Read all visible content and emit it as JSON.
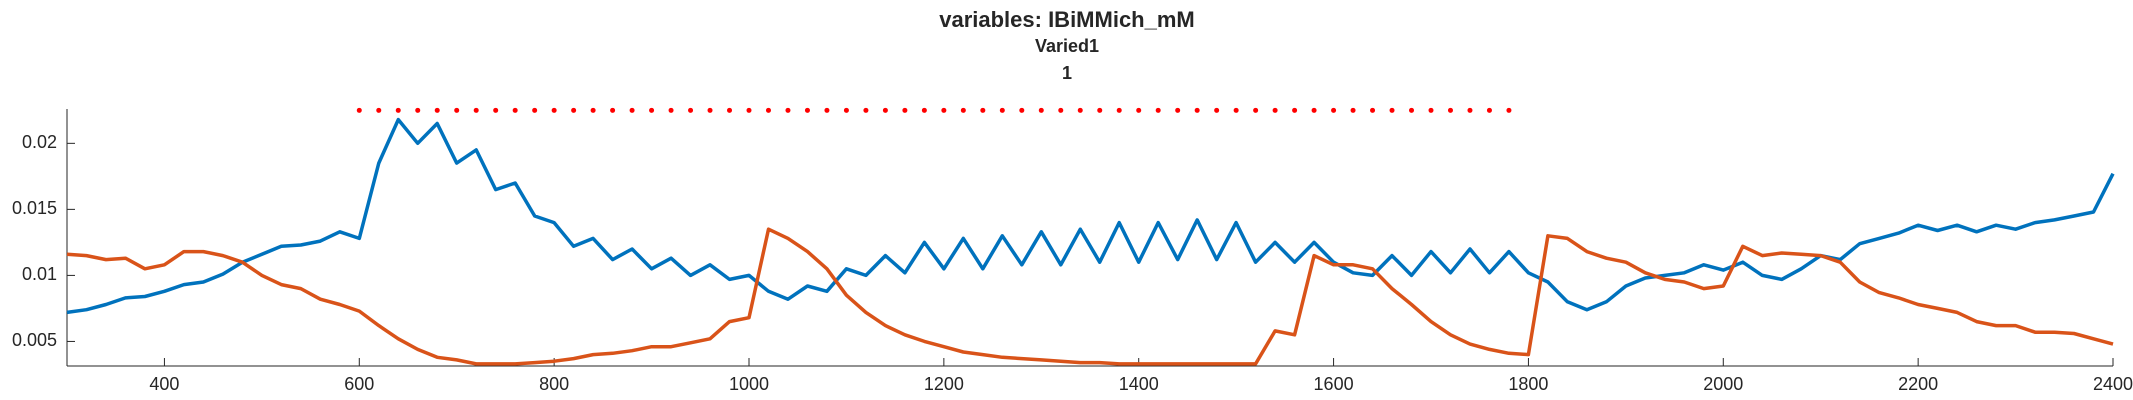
{
  "chart_data": {
    "type": "line",
    "title": "variables: IBiMMich_mM",
    "subtitle": "Varied1",
    "subtitle2": "1",
    "x": [
      300,
      320,
      340,
      360,
      380,
      400,
      420,
      440,
      460,
      480,
      500,
      520,
      540,
      560,
      580,
      600,
      620,
      640,
      660,
      680,
      700,
      720,
      740,
      760,
      780,
      800,
      820,
      840,
      860,
      880,
      900,
      920,
      940,
      960,
      980,
      1000,
      1020,
      1040,
      1060,
      1080,
      1100,
      1120,
      1140,
      1160,
      1180,
      1200,
      1220,
      1240,
      1260,
      1280,
      1300,
      1320,
      1340,
      1360,
      1380,
      1400,
      1420,
      1440,
      1460,
      1480,
      1500,
      1520,
      1540,
      1560,
      1580,
      1600,
      1620,
      1640,
      1660,
      1680,
      1700,
      1720,
      1740,
      1760,
      1780,
      1800,
      1820,
      1840,
      1860,
      1880,
      1900,
      1920,
      1940,
      1960,
      1980,
      2000,
      2020,
      2040,
      2060,
      2080,
      2100,
      2120,
      2140,
      2160,
      2180,
      2200,
      2220,
      2240,
      2260,
      2280,
      2300,
      2320,
      2340,
      2360,
      2380,
      2400
    ],
    "series": [
      {
        "color": "#0072bd",
        "style": "solid",
        "values": [
          0.0072,
          0.0074,
          0.0078,
          0.0083,
          0.0084,
          0.0088,
          0.0093,
          0.0095,
          0.0101,
          0.011,
          0.0116,
          0.0122,
          0.0123,
          0.0126,
          0.0133,
          0.0128,
          0.0185,
          0.0218,
          0.02,
          0.0215,
          0.0185,
          0.0195,
          0.0165,
          0.017,
          0.0145,
          0.014,
          0.0122,
          0.0128,
          0.0112,
          0.012,
          0.0105,
          0.0113,
          0.01,
          0.0108,
          0.0097,
          0.01,
          0.0088,
          0.0082,
          0.0092,
          0.0088,
          0.0105,
          0.01,
          0.0115,
          0.0102,
          0.0125,
          0.0105,
          0.0128,
          0.0105,
          0.013,
          0.0108,
          0.0133,
          0.0108,
          0.0135,
          0.011,
          0.014,
          0.011,
          0.014,
          0.0112,
          0.0142,
          0.0112,
          0.014,
          0.011,
          0.0125,
          0.011,
          0.0125,
          0.011,
          0.0102,
          0.01,
          0.0115,
          0.01,
          0.0118,
          0.0102,
          0.012,
          0.0102,
          0.0118,
          0.0102,
          0.0095,
          0.008,
          0.0074,
          0.008,
          0.0092,
          0.0098,
          0.01,
          0.0102,
          0.0108,
          0.0104,
          0.011,
          0.01,
          0.0097,
          0.0105,
          0.0115,
          0.0112,
          0.0124,
          0.0128,
          0.0132,
          0.0138,
          0.0134,
          0.0138,
          0.0133,
          0.0138,
          0.0135,
          0.014,
          0.0142,
          0.0145,
          0.0148,
          0.0177
        ]
      },
      {
        "color": "#d95319",
        "style": "solid",
        "values": [
          0.0116,
          0.0115,
          0.0112,
          0.0113,
          0.0105,
          0.0108,
          0.0118,
          0.0118,
          0.0115,
          0.011,
          0.01,
          0.0093,
          0.009,
          0.0082,
          0.0078,
          0.0073,
          0.0062,
          0.0052,
          0.0044,
          0.0038,
          0.0036,
          0.0033,
          0.0033,
          0.0033,
          0.0034,
          0.0035,
          0.0037,
          0.004,
          0.0041,
          0.0043,
          0.0046,
          0.0046,
          0.0049,
          0.0052,
          0.0065,
          0.0068,
          0.0135,
          0.0128,
          0.0118,
          0.0105,
          0.0085,
          0.0072,
          0.0062,
          0.0055,
          0.005,
          0.0046,
          0.0042,
          0.004,
          0.0038,
          0.0037,
          0.0036,
          0.0035,
          0.0034,
          0.0034,
          0.0033,
          0.0033,
          0.0033,
          0.0033,
          0.0033,
          0.0033,
          0.0033,
          0.0033,
          0.0058,
          0.0055,
          0.0115,
          0.0108,
          0.0108,
          0.0105,
          0.009,
          0.0078,
          0.0065,
          0.0055,
          0.0048,
          0.0044,
          0.0041,
          0.004,
          0.013,
          0.0128,
          0.0118,
          0.0113,
          0.011,
          0.0102,
          0.0097,
          0.0095,
          0.009,
          0.0092,
          0.0122,
          0.0115,
          0.0117,
          0.0116,
          0.0115,
          0.011,
          0.0095,
          0.0087,
          0.0083,
          0.0078,
          0.0075,
          0.0072,
          0.0065,
          0.0062,
          0.0062,
          0.0057,
          0.0057,
          0.0056,
          0.0052,
          0.0048
        ]
      },
      {
        "color": "#ff0000",
        "style": "dotted",
        "values": [
          null,
          null,
          null,
          null,
          null,
          null,
          null,
          null,
          null,
          null,
          null,
          null,
          null,
          null,
          null,
          0.0225,
          0.0225,
          0.0225,
          0.0225,
          0.0225,
          0.0225,
          0.0225,
          0.0225,
          0.0225,
          0.0225,
          0.0225,
          0.0225,
          0.0225,
          0.0225,
          0.0225,
          0.0225,
          0.0225,
          0.0225,
          0.0225,
          0.0225,
          0.0225,
          0.0225,
          0.0225,
          0.0225,
          0.0225,
          0.0225,
          0.0225,
          0.0225,
          0.0225,
          0.0225,
          0.0225,
          0.0225,
          0.0225,
          0.0225,
          0.0225,
          0.0225,
          0.0225,
          0.0225,
          0.0225,
          0.0225,
          0.0225,
          0.0225,
          0.0225,
          0.0225,
          0.0225,
          0.0225,
          0.0225,
          0.0225,
          0.0225,
          0.0225,
          0.0225,
          0.0225,
          0.0225,
          0.0225,
          0.0225,
          0.0225,
          0.0225,
          0.0225,
          0.0225,
          0.0225,
          null,
          null,
          null,
          null,
          null,
          null,
          null,
          null,
          null,
          null,
          null,
          null,
          null,
          null,
          null,
          null,
          null,
          null,
          null,
          null,
          null,
          null,
          null,
          null,
          null,
          null,
          null,
          null,
          null,
          null,
          null
        ]
      }
    ],
    "xlim": [
      300,
      2400
    ],
    "xticks": [
      400,
      600,
      800,
      1000,
      1200,
      1400,
      1600,
      1800,
      2000,
      2200,
      2400
    ],
    "ylim": [
      0.00314,
      0.0226
    ],
    "yticks": [
      0.005,
      0.01,
      0.015,
      0.02
    ]
  }
}
